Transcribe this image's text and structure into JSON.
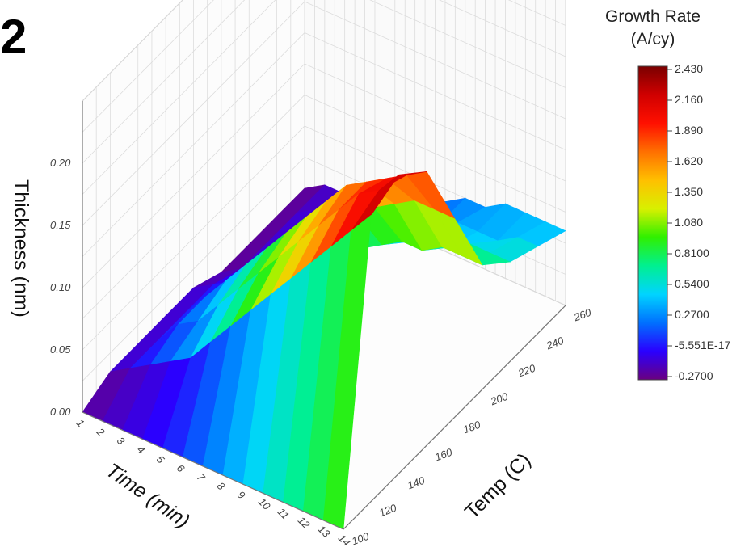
{
  "panel_label": "2",
  "chart_data": {
    "type": "surface3d",
    "xlabel": "Time (min)",
    "ylabel": "Temp (C)",
    "zlabel": "Thickness (nm)",
    "x_ticks": [
      "1",
      "2",
      "3",
      "4",
      "5",
      "6",
      "7",
      "8",
      "9",
      "10",
      "11",
      "12",
      "13",
      "14"
    ],
    "y_ticks": [
      "100",
      "120",
      "140",
      "160",
      "180",
      "200",
      "220",
      "240",
      "260"
    ],
    "z_ticks": [
      "0.00",
      "0.05",
      "0.10",
      "0.15",
      "0.20"
    ],
    "xlim": [
      1,
      14
    ],
    "ylim": [
      100,
      260
    ],
    "zlim": [
      0,
      0.25
    ],
    "colorbar": {
      "title_line1": "Growth Rate",
      "title_line2": "(A/cy)",
      "ticks": [
        "2.430",
        "2.160",
        "1.890",
        "1.620",
        "1.350",
        "1.080",
        "0.8100",
        "0.5400",
        "0.2700",
        "-5.551E-17",
        "-0.2700"
      ],
      "range": [
        -0.27,
        2.43
      ],
      "colors": [
        "#6a0080",
        "#2a00ff",
        "#0070ff",
        "#00d4ff",
        "#00f090",
        "#30f000",
        "#d8f000",
        "#ffc000",
        "#ff7000",
        "#ff1000",
        "#d00000",
        "#7a0000"
      ]
    },
    "surface_rows": [
      {
        "temp": 100,
        "thickness": [
          0.0,
          0.0,
          0.0,
          0.0,
          0.0,
          0.0,
          0.0,
          0.0,
          0.0,
          0.0,
          0.0,
          0.0,
          0.0,
          0.0
        ]
      },
      {
        "temp": 120,
        "thickness": [
          0.01,
          0.02,
          0.03,
          0.04,
          0.05,
          0.07,
          0.09,
          0.11,
          0.13,
          0.15,
          0.17,
          0.19,
          0.21,
          0.23
        ]
      },
      {
        "temp": 140,
        "thickness": [
          0.01,
          0.02,
          0.04,
          0.05,
          0.07,
          0.09,
          0.11,
          0.13,
          0.15,
          0.17,
          0.19,
          0.21,
          0.22,
          0.24
        ]
      },
      {
        "temp": 160,
        "thickness": [
          0.01,
          0.02,
          0.04,
          0.06,
          0.08,
          0.1,
          0.12,
          0.14,
          0.16,
          0.18,
          0.19,
          0.2,
          0.21,
          0.22
        ]
      },
      {
        "temp": 180,
        "thickness": [
          0.01,
          0.02,
          0.03,
          0.05,
          0.07,
          0.08,
          0.1,
          0.12,
          0.13,
          0.14,
          0.15,
          0.16,
          0.16,
          0.16
        ]
      },
      {
        "temp": 200,
        "thickness": [
          0.0,
          0.01,
          0.02,
          0.03,
          0.04,
          0.05,
          0.06,
          0.07,
          0.08,
          0.09,
          0.09,
          0.1,
          0.1,
          0.1
        ]
      },
      {
        "temp": 220,
        "thickness": [
          0.0,
          0.01,
          0.02,
          0.03,
          0.03,
          0.04,
          0.05,
          0.06,
          0.06,
          0.07,
          0.07,
          0.08,
          0.08,
          0.08
        ]
      },
      {
        "temp": 240,
        "thickness": [
          0.0,
          0.01,
          0.02,
          0.02,
          0.03,
          0.04,
          0.04,
          0.05,
          0.05,
          0.06,
          0.06,
          0.06,
          0.07,
          0.07
        ]
      },
      {
        "temp": 260,
        "thickness": [
          0.0,
          0.01,
          0.01,
          0.02,
          0.03,
          0.03,
          0.04,
          0.04,
          0.05,
          0.05,
          0.06,
          0.06,
          0.06,
          0.06
        ]
      }
    ]
  }
}
